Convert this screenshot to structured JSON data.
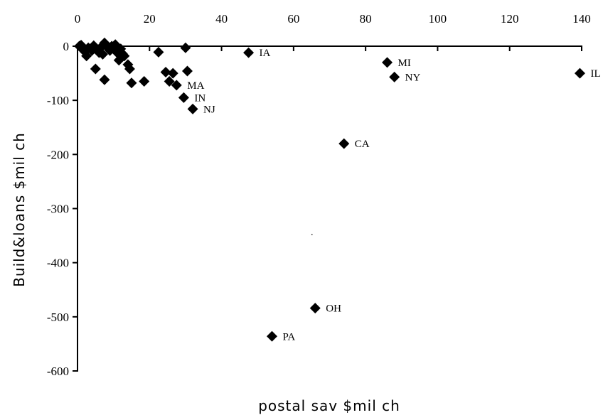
{
  "chart_data": {
    "type": "scatter",
    "title": "",
    "xlabel": "postal sav  $mil ch",
    "ylabel": "Build&loans $mil ch",
    "xlim": [
      0,
      140
    ],
    "ylim": [
      -600,
      0
    ],
    "xticks": [
      0,
      20,
      40,
      60,
      80,
      100,
      120,
      140
    ],
    "yticks": [
      0,
      -100,
      -200,
      -300,
      -400,
      -500,
      -600
    ],
    "x_axis_position": "top",
    "grid": false,
    "legend": "none",
    "marker": "diamond",
    "marker_color": "#000000",
    "points": [
      {
        "x": 0.5,
        "y": 0,
        "label": ""
      },
      {
        "x": 1,
        "y": 2,
        "label": ""
      },
      {
        "x": 1.5,
        "y": -5,
        "label": ""
      },
      {
        "x": 2,
        "y": -10,
        "label": ""
      },
      {
        "x": 2.5,
        "y": -18,
        "label": ""
      },
      {
        "x": 3,
        "y": -3,
        "label": ""
      },
      {
        "x": 4,
        "y": -8,
        "label": ""
      },
      {
        "x": 4.5,
        "y": 1,
        "label": ""
      },
      {
        "x": 5,
        "y": -42,
        "label": ""
      },
      {
        "x": 5.5,
        "y": -6,
        "label": ""
      },
      {
        "x": 6,
        "y": -12,
        "label": ""
      },
      {
        "x": 6.5,
        "y": -2,
        "label": ""
      },
      {
        "x": 7,
        "y": -15,
        "label": ""
      },
      {
        "x": 7.5,
        "y": -62,
        "label": ""
      },
      {
        "x": 7.5,
        "y": 6,
        "label": ""
      },
      {
        "x": 8,
        "y": 2,
        "label": ""
      },
      {
        "x": 8.5,
        "y": -4,
        "label": ""
      },
      {
        "x": 9,
        "y": -8,
        "label": ""
      },
      {
        "x": 9.5,
        "y": 0,
        "label": ""
      },
      {
        "x": 10,
        "y": -3,
        "label": ""
      },
      {
        "x": 10.5,
        "y": 3,
        "label": ""
      },
      {
        "x": 11,
        "y": -12,
        "label": ""
      },
      {
        "x": 11.5,
        "y": -26,
        "label": ""
      },
      {
        "x": 12,
        "y": -5,
        "label": ""
      },
      {
        "x": 12.5,
        "y": -14,
        "label": ""
      },
      {
        "x": 13,
        "y": -18,
        "label": ""
      },
      {
        "x": 14,
        "y": -34,
        "label": ""
      },
      {
        "x": 14.5,
        "y": -42,
        "label": ""
      },
      {
        "x": 15,
        "y": -68,
        "label": ""
      },
      {
        "x": 18.5,
        "y": -65,
        "label": ""
      },
      {
        "x": 22.5,
        "y": -11,
        "label": ""
      },
      {
        "x": 24.5,
        "y": -48,
        "label": ""
      },
      {
        "x": 25.5,
        "y": -65,
        "label": ""
      },
      {
        "x": 26.5,
        "y": -50,
        "label": ""
      },
      {
        "x": 27.5,
        "y": -72,
        "label": "MA"
      },
      {
        "x": 29.5,
        "y": -95,
        "label": "IN"
      },
      {
        "x": 30,
        "y": -3,
        "label": ""
      },
      {
        "x": 30.5,
        "y": -46,
        "label": ""
      },
      {
        "x": 32,
        "y": -116,
        "label": "NJ"
      },
      {
        "x": 47.5,
        "y": -12,
        "label": "IA"
      },
      {
        "x": 54,
        "y": -536,
        "label": "PA"
      },
      {
        "x": 66,
        "y": -484,
        "label": "OH"
      },
      {
        "x": 74,
        "y": -180,
        "label": "CA"
      },
      {
        "x": 86,
        "y": -30,
        "label": "MI"
      },
      {
        "x": 88,
        "y": -57,
        "label": "NY"
      },
      {
        "x": 139.5,
        "y": -50,
        "label": "IL"
      }
    ]
  }
}
